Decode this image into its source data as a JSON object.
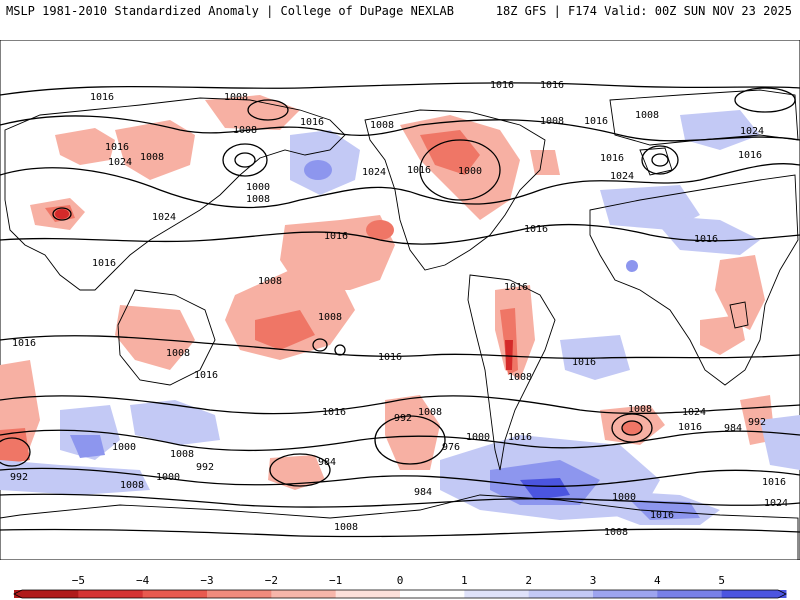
{
  "header": {
    "left_title": "MSLP 1981-2010 Standardized Anomaly | College of DuPage NEXLAB",
    "right_title": "18Z GFS | F174 Valid: 00Z SUN NOV 23 2025"
  },
  "isobar_labels": [
    "1016",
    "1008",
    "1016",
    "1016",
    "1008",
    "1016",
    "1024",
    "1016",
    "1008",
    "1008",
    "1008",
    "1000",
    "1008",
    "1016",
    "1024",
    "1016",
    "1016",
    "1024",
    "1024",
    "1000",
    "1008",
    "1016",
    "1024",
    "1016",
    "1016",
    "1016",
    "1016",
    "1016",
    "1008",
    "1016",
    "1008",
    "1008",
    "1016",
    "1008",
    "1016",
    "1016",
    "1008",
    "1016",
    "1024",
    "1016",
    "992",
    "1008",
    "1000",
    "976",
    "1016",
    "984",
    "984",
    "992",
    "1000",
    "1008",
    "1000",
    "992",
    "1008",
    "1016",
    "1008",
    "1024",
    "984",
    "992",
    "1016",
    "1000",
    "1008"
  ],
  "colors": {
    "neg_strong": "#d42a2a",
    "neg_mid": "#ef7666",
    "neg_light": "#f7b0a3",
    "pos_light": "#c3c9f5",
    "pos_mid": "#8d96ee",
    "pos_strong": "#4b55e0",
    "coast": "#000000"
  },
  "colorbar": {
    "ticks": [
      "−5",
      "−4",
      "−3",
      "−2",
      "−1",
      "0",
      "1",
      "2",
      "3",
      "4",
      "5"
    ],
    "colors": [
      "#b01b1b",
      "#d53434",
      "#e85a4f",
      "#f08b7d",
      "#f7b6aa",
      "#fde0da",
      "#ffffff",
      "#dfe2fa",
      "#c3c9f5",
      "#9da4ef",
      "#7880e8",
      "#4b55e0"
    ]
  }
}
